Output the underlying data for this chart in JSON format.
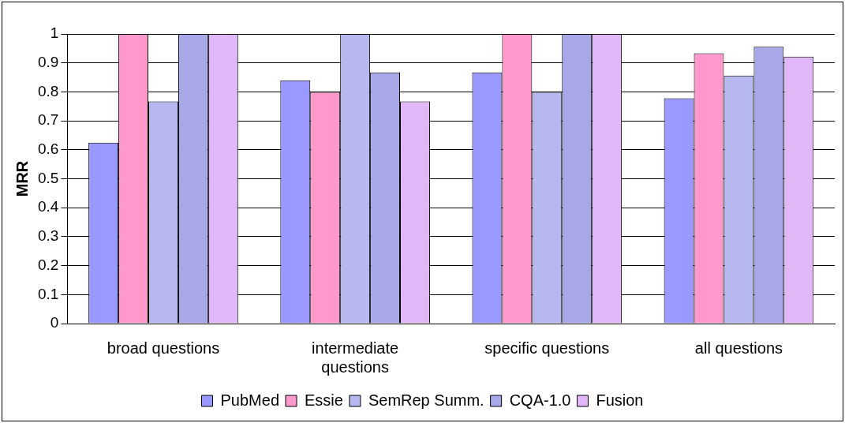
{
  "chart_data": {
    "type": "bar",
    "ylabel": "MRR",
    "categories": [
      "broad questions",
      "intermediate questions",
      "specific questions",
      "all questions"
    ],
    "series": [
      {
        "name": "PubMed",
        "color": "#9999ff",
        "values": [
          0.625,
          0.84,
          0.867,
          0.778
        ]
      },
      {
        "name": "Essie",
        "color": "#ff99cc",
        "values": [
          1,
          0.8,
          1,
          0.933
        ]
      },
      {
        "name": "SemRep Summ.",
        "color": "#b8b8f0",
        "values": [
          0.767,
          1,
          0.8,
          0.856
        ]
      },
      {
        "name": "CQA-1.0",
        "color": "#a8a8e8",
        "values": [
          1,
          0.867,
          1,
          0.956
        ]
      },
      {
        "name": "Fusion",
        "color": "#e0b8f8",
        "values": [
          1,
          0.767,
          1,
          0.922
        ]
      }
    ],
    "ylim": [
      0,
      1
    ],
    "yticks": [
      0,
      0.1,
      0.2,
      0.3,
      0.4,
      0.5,
      0.6,
      0.7,
      0.8,
      0.9,
      1
    ],
    "grid": "y",
    "legend": "bottom"
  }
}
